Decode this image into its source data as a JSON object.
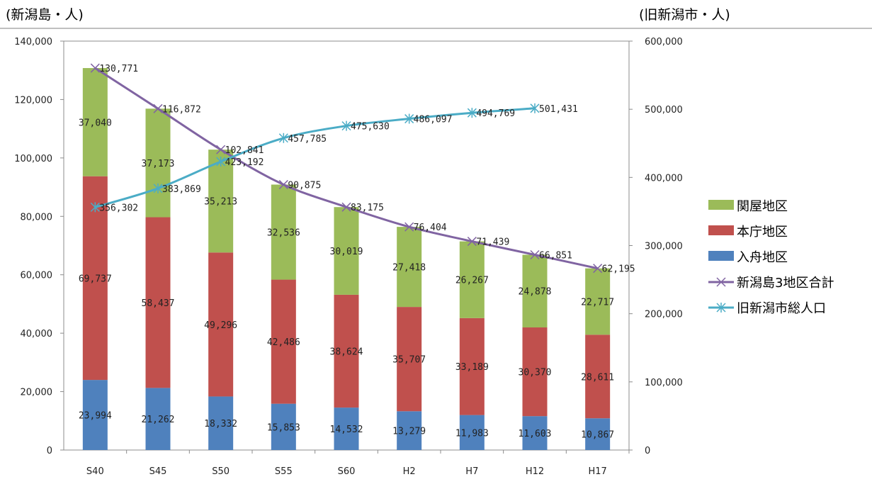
{
  "units": {
    "left": "(新潟島・人)",
    "right": "(旧新潟市・人)"
  },
  "chart_data": {
    "type": "bar",
    "stacked": true,
    "categories": [
      "S40",
      "S45",
      "S50",
      "S55",
      "S60",
      "H2",
      "H7",
      "H12",
      "H17"
    ],
    "series": [
      {
        "name": "入舟地区",
        "type": "bar",
        "axis": "left",
        "color": "#4f81bd",
        "values": [
          23994,
          21262,
          18332,
          15853,
          14532,
          13279,
          11983,
          11603,
          10867
        ],
        "labels": [
          "23,994",
          "21,262",
          "18,332",
          "15,853",
          "14,532",
          "13,279",
          "11,983",
          "11,603",
          "10,867"
        ]
      },
      {
        "name": "本庁地区",
        "type": "bar",
        "axis": "left",
        "color": "#c0504d",
        "values": [
          69737,
          58437,
          49296,
          42486,
          38624,
          35707,
          33189,
          30370,
          28611
        ],
        "labels": [
          "69,737",
          "58,437",
          "49,296",
          "42,486",
          "38,624",
          "35,707",
          "33,189",
          "30,370",
          "28,611"
        ]
      },
      {
        "name": "関屋地区",
        "type": "bar",
        "axis": "left",
        "color": "#9bbb59",
        "values": [
          37040,
          37173,
          35213,
          32536,
          30019,
          27418,
          26267,
          24878,
          22717
        ],
        "labels": [
          "37,040",
          "37,173",
          "35,213",
          "32,536",
          "30,019",
          "27,418",
          "26,267",
          "24,878",
          "22,717"
        ]
      },
      {
        "name": "新潟島3地区合計",
        "type": "line",
        "axis": "left",
        "color": "#8064a2",
        "marker": "x",
        "values": [
          130771,
          116872,
          102841,
          90875,
          83175,
          76404,
          71439,
          66851,
          62195
        ],
        "labels": [
          "130,771",
          "116,872",
          "102,841",
          "90,875",
          "83,175",
          "76,404",
          "71,439",
          "66,851",
          "62,195"
        ]
      },
      {
        "name": "旧新潟市総人口",
        "type": "line",
        "axis": "right",
        "color": "#4bacc6",
        "marker": "asterisk",
        "values": [
          356302,
          383869,
          423192,
          457785,
          475630,
          486097,
          494769,
          501431,
          null
        ],
        "labels": [
          "356,302",
          "383,869",
          "423,192",
          "457,785",
          "475,630",
          "486,097",
          "494,769",
          "501,431",
          ""
        ]
      }
    ],
    "y_left": {
      "range": [
        0,
        140000
      ],
      "ticks": [
        "0",
        "20,000",
        "40,000",
        "60,000",
        "80,000",
        "100,000",
        "120,000",
        "140,000"
      ]
    },
    "y_right": {
      "range": [
        0,
        600000
      ],
      "ticks": [
        "0",
        "100,000",
        "200,000",
        "300,000",
        "400,000",
        "500,000",
        "600,000"
      ]
    },
    "legend_order": [
      "関屋地区",
      "本庁地区",
      "入舟地区",
      "新潟島3地区合計",
      "旧新潟市総人口"
    ],
    "legend_position": "right",
    "grid": false
  }
}
